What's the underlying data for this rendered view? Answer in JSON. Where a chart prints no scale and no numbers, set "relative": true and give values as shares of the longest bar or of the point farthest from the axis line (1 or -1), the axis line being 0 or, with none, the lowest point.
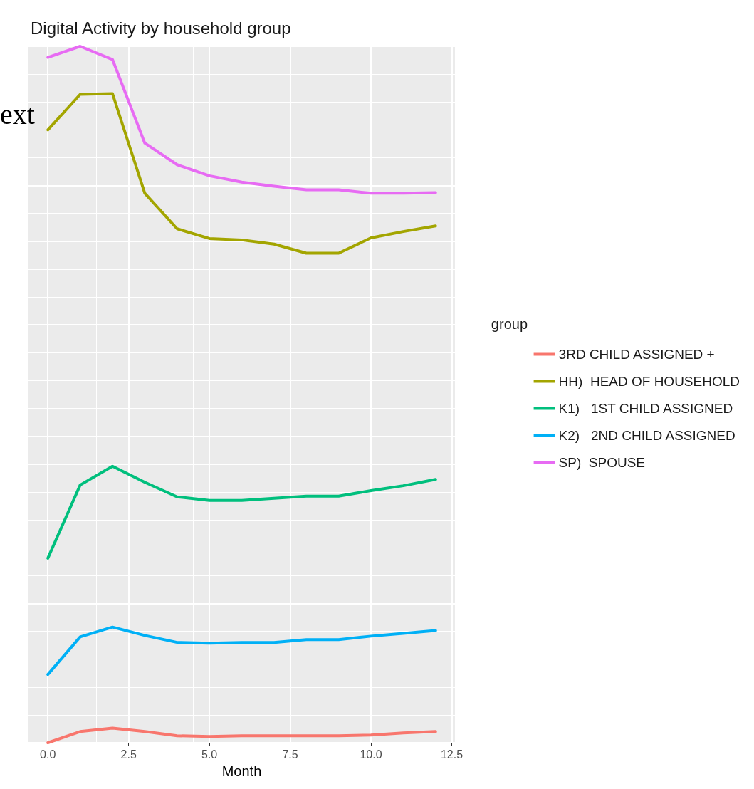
{
  "chart_data": {
    "type": "line",
    "title": "Digital Activity by household group",
    "xlabel": "Month",
    "legend_title": "group",
    "relative": true,
    "legend": "right",
    "grid": true,
    "marker": "none",
    "line_style": "solid",
    "annotations": [
      "ext"
    ],
    "x": [
      0,
      1,
      2,
      3,
      4,
      5,
      6,
      7,
      8,
      9,
      10,
      11,
      12
    ],
    "xlim": [
      -0.6,
      12.6
    ],
    "xticks": [
      {
        "value": 0,
        "label": "0.0"
      },
      {
        "value": 2.5,
        "label": "2.5"
      },
      {
        "value": 5,
        "label": "5.0"
      },
      {
        "value": 7.5,
        "label": "7.5"
      },
      {
        "value": 10,
        "label": "10.0"
      },
      {
        "value": 12.5,
        "label": "12.5"
      }
    ],
    "series": [
      {
        "name": "3RD CHILD ASSIGNED +",
        "color": "#f8766d",
        "values": [
          0,
          0.016,
          0.021,
          0.016,
          0.01,
          0.009,
          0.01,
          0.01,
          0.01,
          0.01,
          0.011,
          0.014,
          0.016
        ]
      },
      {
        "name": "HH)  HEAD OF HOUSEHOLD",
        "color": "#a3a500",
        "values": [
          0.88,
          0.931,
          0.932,
          0.789,
          0.738,
          0.724,
          0.722,
          0.716,
          0.703,
          0.703,
          0.725,
          0.734,
          0.742
        ]
      },
      {
        "name": "K1)   1ST CHILD ASSIGNED",
        "color": "#00bf7d",
        "values": [
          0.265,
          0.37,
          0.397,
          0.374,
          0.353,
          0.348,
          0.348,
          0.351,
          0.354,
          0.354,
          0.362,
          0.369,
          0.378
        ]
      },
      {
        "name": "K2)   2ND CHILD ASSIGNED",
        "color": "#00b0f6",
        "values": [
          0.098,
          0.152,
          0.166,
          0.154,
          0.144,
          0.143,
          0.144,
          0.144,
          0.148,
          0.148,
          0.153,
          0.157,
          0.161
        ]
      },
      {
        "name": "SP)  SPOUSE",
        "color": "#e76bf3",
        "values": [
          0.984,
          1,
          0.981,
          0.861,
          0.83,
          0.814,
          0.805,
          0.799,
          0.794,
          0.794,
          0.789,
          0.789,
          0.79
        ]
      }
    ]
  }
}
